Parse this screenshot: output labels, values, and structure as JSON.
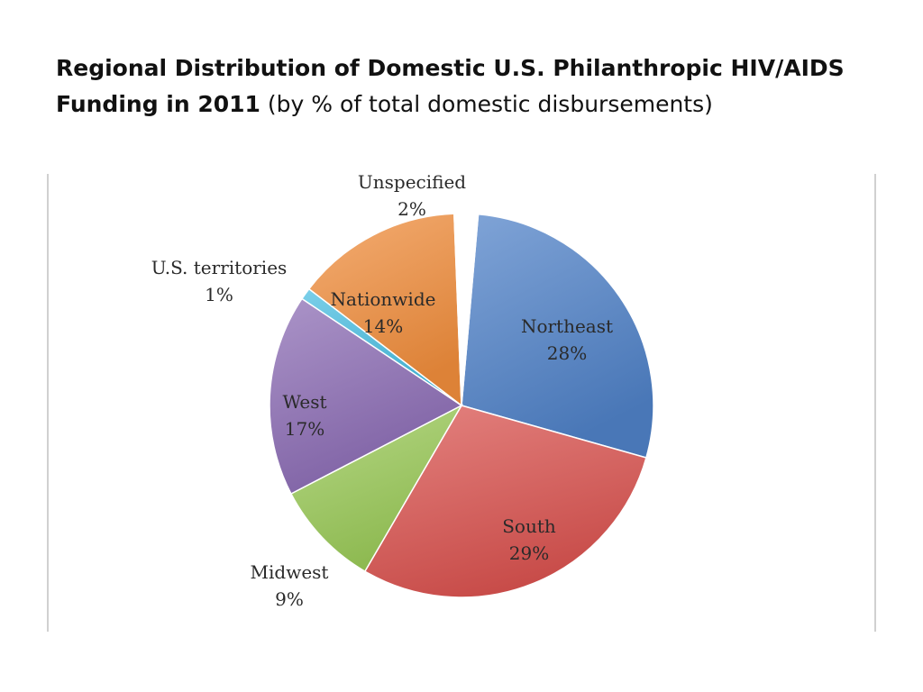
{
  "title": {
    "bold": "Regional Distribution of Domestic U.S. Philanthropic HIV/AIDS Funding in 2011",
    "normal": "(by % of total domestic disbursements)"
  },
  "chart_data": {
    "type": "pie",
    "title": "",
    "start_angle_deg": 5,
    "direction": "clockwise",
    "slices": [
      {
        "name": "Northeast",
        "value": 28,
        "label": "28%",
        "color": "#4f81c7"
      },
      {
        "name": "South",
        "value": 29,
        "label": "29%",
        "color": "#d9534f"
      },
      {
        "name": "Midwest",
        "value": 9,
        "label": "9%",
        "color": "#99c957"
      },
      {
        "name": "West",
        "value": 17,
        "label": "17%",
        "color": "#8a6bb3"
      },
      {
        "name": "U.S. territories",
        "value": 1,
        "label": "1%",
        "color": "#47bde0"
      },
      {
        "name": "Nationwide",
        "value": 14,
        "label": "14%",
        "color": "#f08d3c"
      },
      {
        "name": "Unspecified",
        "value": 2,
        "label": "2%",
        "color": "#ffffff"
      }
    ]
  }
}
